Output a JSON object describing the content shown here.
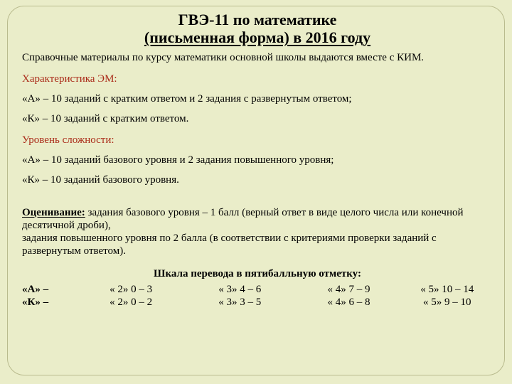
{
  "title": {
    "line1": "ГВЭ-11 по математике",
    "line2": "(письменная форма) в 2016 году"
  },
  "reference": "Справочные материалы по курсу математики основной школы выдаются вместе с КИМ.",
  "sections": {
    "char_head": "Характеристика ЭМ:",
    "char_a": "«А» –  10 заданий с кратким ответом и 2 задания с развернутым ответом;",
    "char_k": "«К»  –  10 заданий с кратким ответом.",
    "diff_head": "Уровень сложности:",
    "diff_a": "«А»  –  10 заданий базового уровня и 2 задания повышенного уровня;",
    "diff_k": "«К»  –  10 заданий базового уровня.",
    "score_label": "Оценивание:",
    "score_body": " задания базового уровня – 1 балл (верный ответ в виде целого числа или конечной десятичной дроби),\nзадания повышенного уровня по 2 балла (в соответствии с критериями проверки заданий с развернутым ответом).",
    "scale_title": "Шкала перевода в пятибалльную отметку:"
  },
  "scale": {
    "rows": [
      {
        "label": "«А»   –",
        "c2": "« 2» 0 – 3",
        "c3": "« 3» 4 – 6",
        "c4": "« 4» 7 – 9",
        "c5": "« 5» 10 – 14"
      },
      {
        "label": "«К»   –",
        "c2": "« 2» 0 – 2",
        "c3": "« 3» 3 – 5",
        "c4": "« 4» 6 – 8",
        "c5": "« 5»  9 – 10"
      }
    ]
  },
  "style": {
    "bg": "#eaedc9",
    "border": "#b9bb8e",
    "section_color": "#aa2a18",
    "text": "#000000",
    "title_fontsize": 22,
    "body_fontsize": 15
  }
}
